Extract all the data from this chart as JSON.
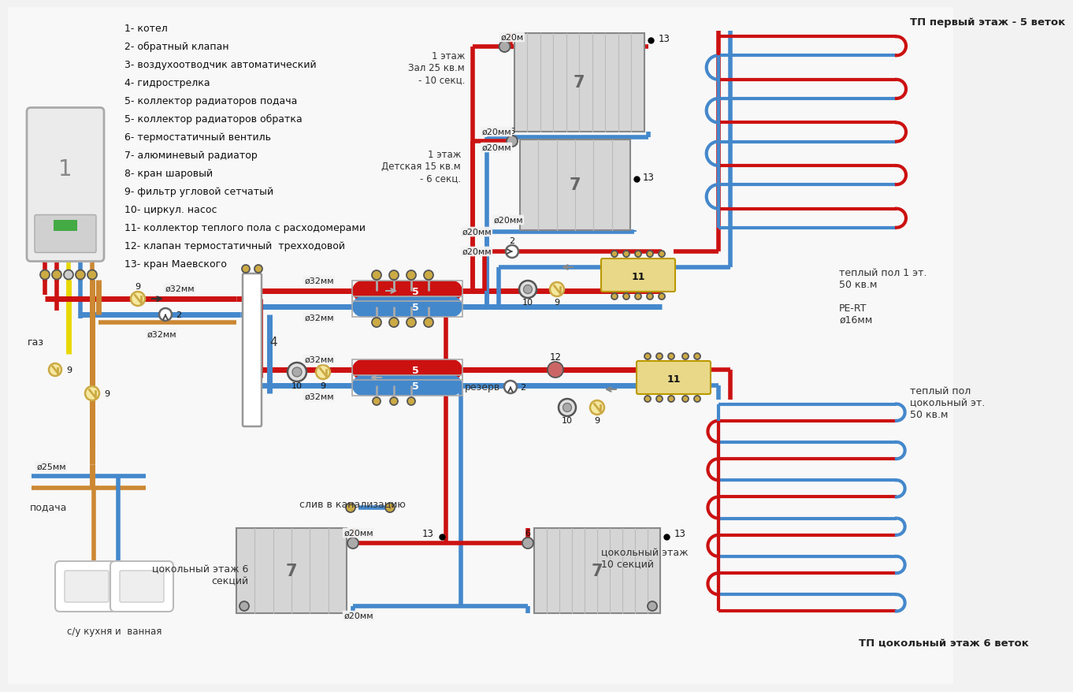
{
  "bg_color": "#f2f2f2",
  "pipe_red": "#cc1111",
  "pipe_blue": "#4488cc",
  "pipe_orange": "#cc8833",
  "pipe_yellow": "#e8d800",
  "legend_items": [
    "1- котел",
    "2- обратный клапан",
    "3- воздухоотводчик автоматический",
    "4- гидрострелка",
    "5- коллектор радиаторов подача",
    "5- коллектор радиаторов обратка",
    "6- термостатичный вентиль",
    "7- алюминевый радиатор",
    "8- кран шаровый",
    "9- фильтр угловой сетчатый",
    "10- циркул. насос",
    "11- коллектор теплого пола с расходомерами",
    "12- клапан термостатичный  трехходовой",
    "13- кран Маевского"
  ],
  "tp1_label": "ТП первый этаж - 5 веток",
  "tp_tsok_label": "ТП цокольный этаж 6 веток",
  "floor1_zal": "1 этаж\nЗал 25 кв.м\n- 10 секц.",
  "floor1_det": "1 этаж\nДетская 15 кв.м\n- 6 секц.",
  "tp1_detail": "теплый пол 1 эт.\n50 кв.м",
  "tp_tsok_detail": "теплый пол\nцокольный эт.\n50 кв.м",
  "pe_rt": "PE-RT\nø16мм",
  "tsok6": "цокольный этаж 6\nсекций",
  "tsok10": "цокольный этаж\n10 секций",
  "rezerv": "резерв",
  "sliv": "слив в канализацию",
  "gas": "газ",
  "podacha": "подача",
  "su": "с/у кухня и  ванная",
  "d32": "ø32мм",
  "d20": "ø20мм",
  "d20m": "ø20м",
  "d25": "ø25мм"
}
